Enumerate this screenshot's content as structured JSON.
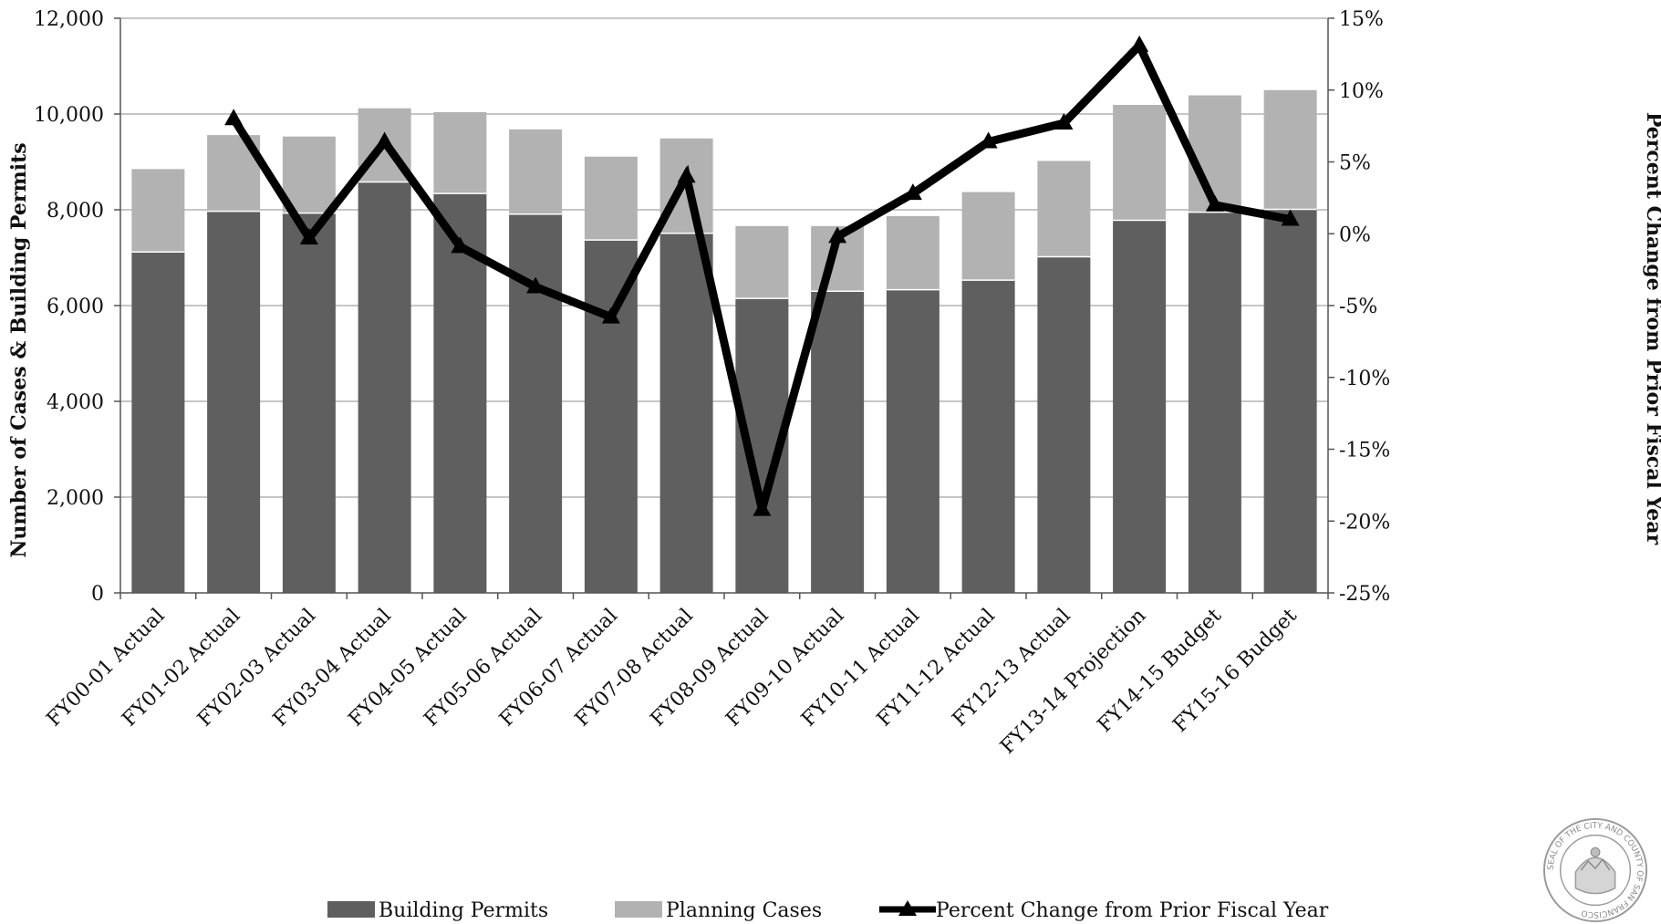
{
  "chart_data": {
    "type": "bar",
    "stacked": true,
    "categories": [
      "FY00-01 Actual",
      "FY01-02 Actual",
      "FY02-03 Actual",
      "FY03-04 Actual",
      "FY04-05 Actual",
      "FY05-06 Actual",
      "FY06-07 Actual",
      "FY07-08 Actual",
      "FY08-09 Actual",
      "FY09-10 Actual",
      "FY10-11 Actual",
      "FY11-12 Actual",
      "FY12-13 Actual",
      "FY13-14 Projection",
      "FY14-15 Budget",
      "FY15-16 Budget"
    ],
    "series": [
      {
        "name": "Building Permits",
        "type": "bar",
        "axis": "left",
        "color": "#5f5f5f",
        "values": [
          7120,
          7970,
          7930,
          8580,
          8340,
          7910,
          7370,
          7510,
          6150,
          6300,
          6330,
          6530,
          7020,
          7780,
          7950,
          8010
        ]
      },
      {
        "name": "Planning Cases",
        "type": "bar",
        "axis": "left",
        "color": "#b2b2b2",
        "values": [
          1730,
          1590,
          1600,
          1540,
          1700,
          1770,
          1740,
          1980,
          1510,
          1360,
          1540,
          1840,
          2000,
          2410,
          2440,
          2490
        ]
      },
      {
        "name": "Percent Change from Prior Fiscal Year",
        "type": "line",
        "axis": "right",
        "color": "#000000",
        "values": [
          null,
          8.0,
          -0.3,
          6.4,
          -0.9,
          -3.7,
          -5.8,
          4.0,
          -19.2,
          -0.2,
          2.8,
          6.4,
          7.7,
          13.1,
          2.0,
          1.0
        ]
      }
    ],
    "ylabel": "Number of Cases & Building Permits",
    "ylabel_right": "Percent Change from Prior Fiscal Year",
    "ylim": [
      0,
      12000
    ],
    "ylim_right": [
      -25,
      15
    ],
    "yticks": [
      "0",
      "2,000",
      "4,000",
      "6,000",
      "8,000",
      "10,000",
      "12,000"
    ],
    "yticks_right": [
      "-25%",
      "-20%",
      "-15%",
      "-10%",
      "-5%",
      "0%",
      "5%",
      "10%",
      "15%"
    ],
    "grid": true,
    "legend": "bottom"
  },
  "seal_text": "SEAL OF THE CITY AND COUNTY OF SAN FRANCISCO"
}
